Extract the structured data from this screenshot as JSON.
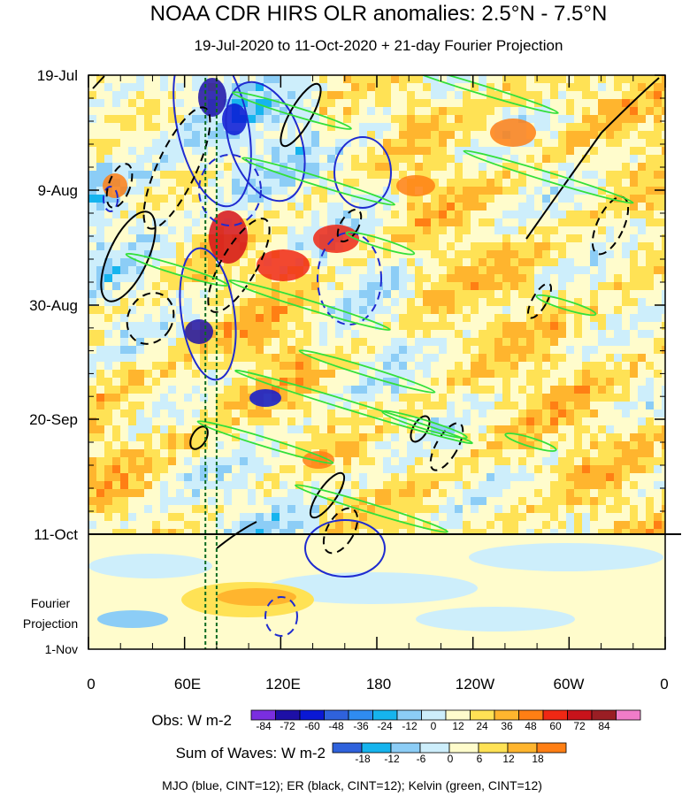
{
  "chart_data": {
    "type": "heatmap",
    "title": "NOAA CDR HIRS OLR anomalies: 2.5°N - 7.5°N",
    "subtitle": "19-Jul-2020 to 11-Oct-2020 + 21-day Fourier Projection",
    "x_ticks": [
      "0",
      "60E",
      "120E",
      "180",
      "120W",
      "60W",
      "0"
    ],
    "y_ticks": [
      "19-Jul",
      "9-Aug",
      "30-Aug",
      "20-Sep",
      "11-Oct"
    ],
    "y_end_label": "1-Nov",
    "forecast_label": [
      "Fourier",
      "Projection"
    ],
    "forecast_start": "11-Oct",
    "obs_colorbar": {
      "title": "Obs: W m-2",
      "labels": [
        "-84",
        "-72",
        "-60",
        "-48",
        "-36",
        "-24",
        "-12",
        "0",
        "12",
        "24",
        "36",
        "48",
        "60",
        "72",
        "84"
      ],
      "colors": [
        "#7a2ee0",
        "#1d0fa6",
        "#0a18d4",
        "#2f62dc",
        "#2f8cf0",
        "#16b4ee",
        "#8ccdf6",
        "#cdeefb",
        "#fffccc",
        "#ffe255",
        "#ffb52e",
        "#ff7f14",
        "#f02814",
        "#c8131b",
        "#9a1e24",
        "#f07cc8"
      ]
    },
    "waves_colorbar": {
      "title": "Sum of Waves: W m-2",
      "labels": [
        "-18",
        "-12",
        "-6",
        "0",
        "6",
        "12",
        "18"
      ],
      "colors": [
        "#2f62dc",
        "#16b4ee",
        "#8ccdf6",
        "#cdeefb",
        "#fffccc",
        "#ffe255",
        "#ffb52e",
        "#ff7f14"
      ]
    },
    "contour_legend": "MJO (blue, CINT=12); ER (black, CINT=12); Kelvin (green, CINT=12)",
    "series": [
      {
        "name": "MJO",
        "color": "#1f2bd0"
      },
      {
        "name": "ER",
        "color": "#000000"
      },
      {
        "name": "Kelvin",
        "color": "#33e03a"
      }
    ],
    "reference_lines_lon": [
      73,
      80
    ]
  }
}
